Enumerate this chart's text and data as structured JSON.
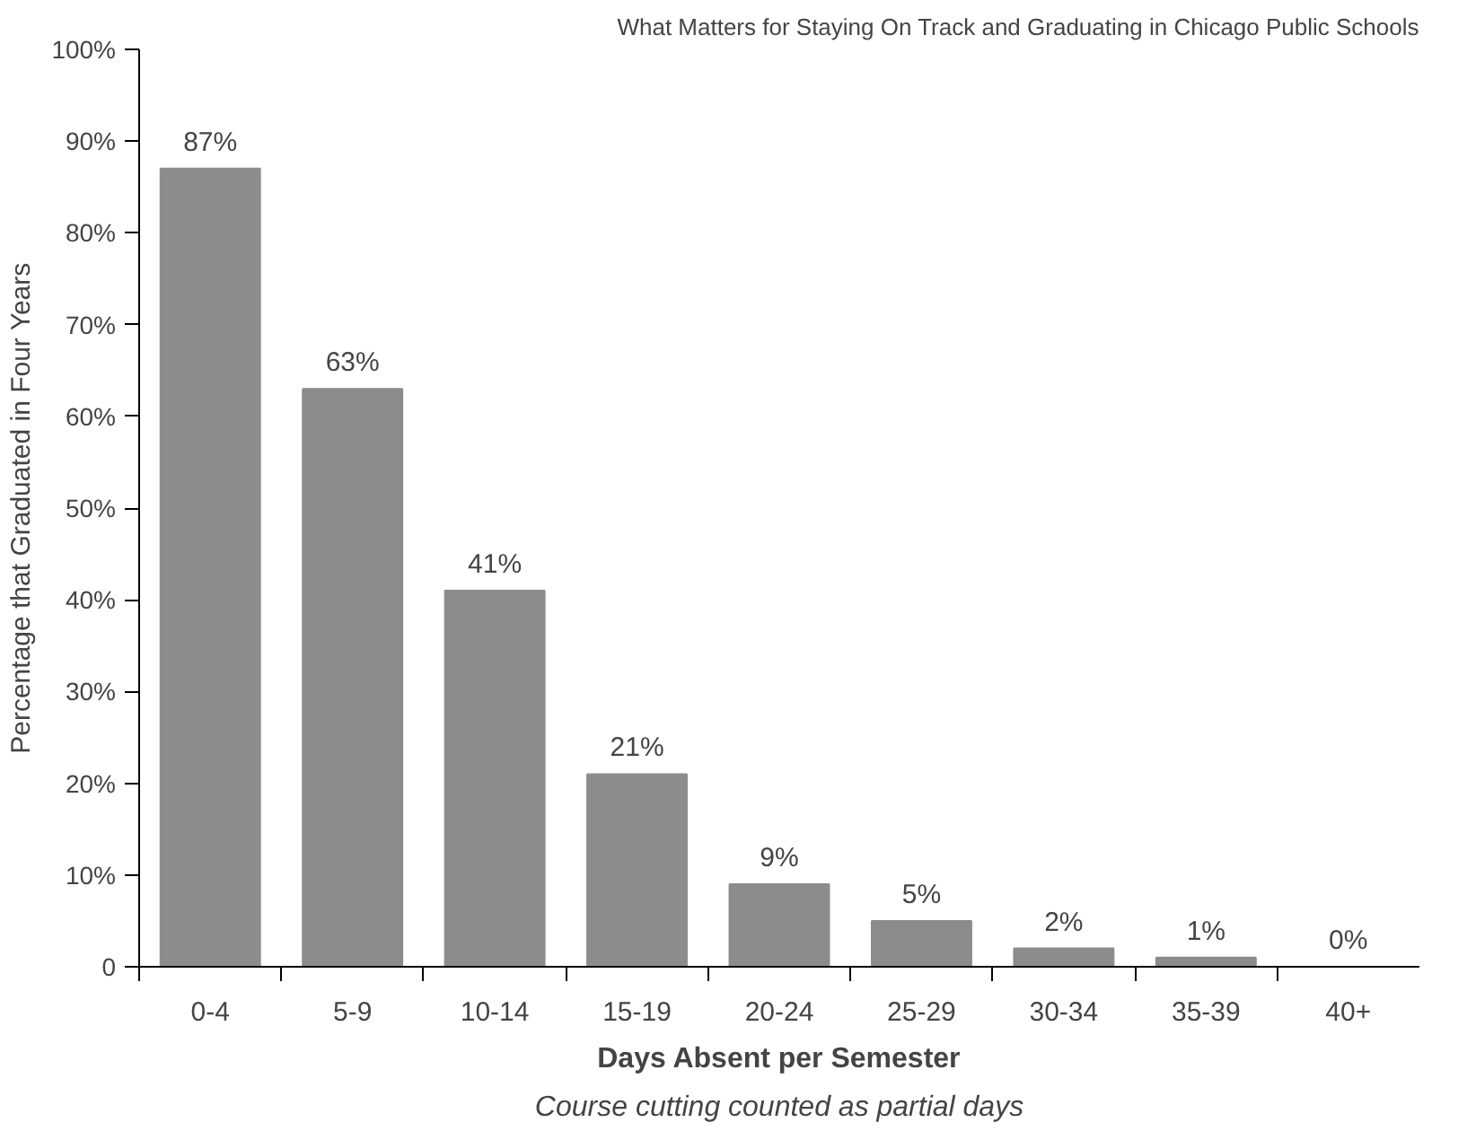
{
  "chart_data": {
    "type": "bar",
    "title": "What Matters for Staying On Track and Graduating in Chicago Public Schools",
    "xlabel": "Days Absent per Semester",
    "ylabel": "Percentage that Graduated in Four Years",
    "annotations": [
      "Course cutting counted as partial days"
    ],
    "categories": [
      "0-4",
      "5-9",
      "10-14",
      "15-19",
      "20-24",
      "25-29",
      "30-34",
      "35-39",
      "40+"
    ],
    "values": [
      87,
      63,
      41,
      21,
      9,
      5,
      2,
      1,
      0
    ],
    "value_labels": [
      "87%",
      "63%",
      "41%",
      "21%",
      "9%",
      "5%",
      "2%",
      "1%",
      "0%"
    ],
    "color": "#8c8c8c",
    "ylim": [
      0,
      100
    ],
    "yticks": [
      {
        "value": 0,
        "label": "0"
      },
      {
        "value": 10,
        "label": "10%"
      },
      {
        "value": 20,
        "label": "20%"
      },
      {
        "value": 30,
        "label": "30%"
      },
      {
        "value": 40,
        "label": "40%"
      },
      {
        "value": 50,
        "label": "50%"
      },
      {
        "value": 60,
        "label": "60%"
      },
      {
        "value": 70,
        "label": "70%"
      },
      {
        "value": 80,
        "label": "80%"
      },
      {
        "value": 90,
        "label": "90%"
      },
      {
        "value": 100,
        "label": "100%"
      }
    ],
    "grid": false
  }
}
